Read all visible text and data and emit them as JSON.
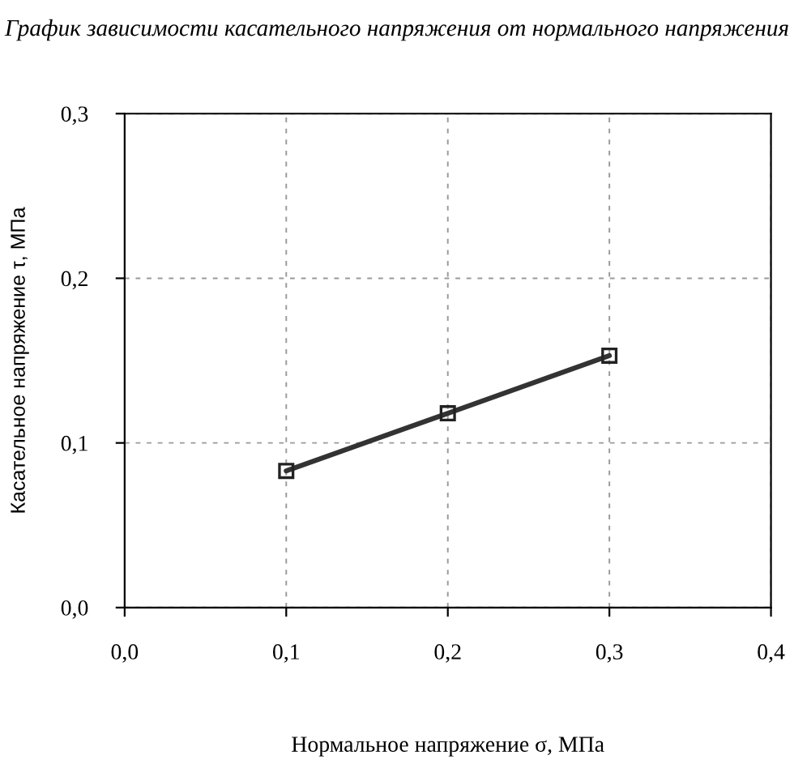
{
  "chart_data": {
    "type": "line",
    "title": "График зависимости касательного напряжения от нормального напряжения",
    "xlabel": "Нормальное напряжение σ, МПа",
    "ylabel": "Касательное напряжение τ, МПа",
    "x": [
      0.1,
      0.2,
      0.3
    ],
    "series": [
      {
        "color": "#333333",
        "values": [
          0.083,
          0.118,
          0.153
        ]
      }
    ],
    "xlim": [
      0,
      0.4
    ],
    "xticks": [
      {
        "value": 0,
        "label": "0,0"
      },
      {
        "value": 0.1,
        "label": "0,1"
      },
      {
        "value": 0.2,
        "label": "0,2"
      },
      {
        "value": 0.3,
        "label": "0,3"
      },
      {
        "value": 0.4,
        "label": "0,4"
      }
    ],
    "ylim": [
      0,
      0.3
    ],
    "yticks": [
      {
        "value": 0,
        "label": "0,0"
      },
      {
        "value": 0.1,
        "label": "0,1"
      },
      {
        "value": 0.2,
        "label": "0,2"
      },
      {
        "value": 0.3,
        "label": "0,3"
      }
    ],
    "grid": true,
    "marker": "square",
    "line_style": "solid",
    "legend": false
  }
}
